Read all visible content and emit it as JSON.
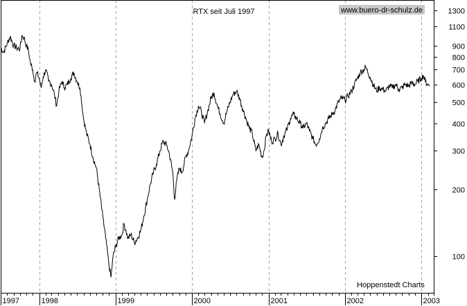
{
  "chart_data": {
    "type": "line",
    "title": "RTX seit Juli 1997",
    "watermark": "www.buero-dr-schulz.de",
    "source": "Hoppenstedt Charts",
    "y_scale": "log",
    "ylim": [
      68,
      1450
    ],
    "y_ticks": [
      100,
      200,
      300,
      400,
      500,
      600,
      700,
      800,
      900,
      1100,
      1300
    ],
    "y_tick_labels": [
      "100",
      "200",
      "300",
      "400",
      "500",
      "600",
      "700",
      "800",
      "900",
      "1100",
      "1300"
    ],
    "xlim": [
      "1997-07-01",
      "2003-03-01"
    ],
    "x_ticks": [
      "1997-07-01",
      "1998-01-01",
      "1999-01-01",
      "2000-01-01",
      "2001-01-01",
      "2002-01-01",
      "2003-01-01"
    ],
    "x_tick_labels": [
      "1997",
      "1998",
      "1999",
      "2000",
      "2001",
      "2002",
      "2003"
    ],
    "grid": "vertical-dashed",
    "series": [
      {
        "color": "#000000",
        "points": [
          [
            "1997-07-01",
            880
          ],
          [
            "1997-07-15",
            840
          ],
          [
            "1997-08-01",
            920
          ],
          [
            "1997-08-15",
            990
          ],
          [
            "1997-09-01",
            900
          ],
          [
            "1997-09-15",
            880
          ],
          [
            "1997-10-01",
            870
          ],
          [
            "1997-10-10",
            1000
          ],
          [
            "1997-10-20",
            980
          ],
          [
            "1997-11-01",
            900
          ],
          [
            "1997-11-10",
            860
          ],
          [
            "1997-11-20",
            750
          ],
          [
            "1997-12-01",
            700
          ],
          [
            "1997-12-10",
            620
          ],
          [
            "1997-12-20",
            680
          ],
          [
            "1998-01-01",
            640
          ],
          [
            "1998-01-10",
            580
          ],
          [
            "1998-01-20",
            650
          ],
          [
            "1998-02-01",
            700
          ],
          [
            "1998-02-15",
            620
          ],
          [
            "1998-03-01",
            600
          ],
          [
            "1998-03-15",
            540
          ],
          [
            "1998-03-25",
            480
          ],
          [
            "1998-04-05",
            560
          ],
          [
            "1998-04-20",
            620
          ],
          [
            "1998-05-01",
            580
          ],
          [
            "1998-05-15",
            600
          ],
          [
            "1998-06-01",
            640
          ],
          [
            "1998-06-15",
            680
          ],
          [
            "1998-07-01",
            620
          ],
          [
            "1998-07-15",
            580
          ],
          [
            "1998-08-01",
            420
          ],
          [
            "1998-08-15",
            360
          ],
          [
            "1998-09-01",
            320
          ],
          [
            "1998-09-15",
            280
          ],
          [
            "1998-10-01",
            250
          ],
          [
            "1998-10-15",
            200
          ],
          [
            "1998-11-01",
            150
          ],
          [
            "1998-11-15",
            120
          ],
          [
            "1998-12-01",
            90
          ],
          [
            "1998-12-10",
            80
          ],
          [
            "1998-12-20",
            100
          ],
          [
            "1999-01-01",
            110
          ],
          [
            "1999-01-15",
            120
          ],
          [
            "1999-02-01",
            125
          ],
          [
            "1999-02-10",
            140
          ],
          [
            "1999-02-20",
            130
          ],
          [
            "1999-03-01",
            120
          ],
          [
            "1999-03-15",
            125
          ],
          [
            "1999-04-01",
            115
          ],
          [
            "1999-04-15",
            120
          ],
          [
            "1999-05-01",
            130
          ],
          [
            "1999-05-15",
            150
          ],
          [
            "1999-06-01",
            180
          ],
          [
            "1999-06-15",
            210
          ],
          [
            "1999-07-01",
            240
          ],
          [
            "1999-07-15",
            260
          ],
          [
            "1999-08-01",
            300
          ],
          [
            "1999-08-15",
            330
          ],
          [
            "1999-09-01",
            320
          ],
          [
            "1999-09-15",
            290
          ],
          [
            "1999-10-01",
            240
          ],
          [
            "1999-10-10",
            180
          ],
          [
            "1999-10-20",
            220
          ],
          [
            "1999-11-01",
            250
          ],
          [
            "1999-11-15",
            240
          ],
          [
            "1999-12-01",
            280
          ],
          [
            "1999-12-15",
            300
          ],
          [
            "2000-01-01",
            350
          ],
          [
            "2000-01-15",
            420
          ],
          [
            "2000-02-01",
            480
          ],
          [
            "2000-02-15",
            450
          ],
          [
            "2000-03-01",
            400
          ],
          [
            "2000-03-15",
            450
          ],
          [
            "2000-04-01",
            520
          ],
          [
            "2000-04-15",
            550
          ],
          [
            "2000-05-01",
            480
          ],
          [
            "2000-05-15",
            440
          ],
          [
            "2000-06-01",
            400
          ],
          [
            "2000-06-15",
            450
          ],
          [
            "2000-07-01",
            500
          ],
          [
            "2000-07-15",
            540
          ],
          [
            "2000-08-01",
            560
          ],
          [
            "2000-08-15",
            520
          ],
          [
            "2000-09-01",
            460
          ],
          [
            "2000-09-15",
            420
          ],
          [
            "2000-10-01",
            380
          ],
          [
            "2000-10-15",
            360
          ],
          [
            "2000-11-01",
            300
          ],
          [
            "2000-11-15",
            320
          ],
          [
            "2000-12-01",
            280
          ],
          [
            "2000-12-10",
            300
          ],
          [
            "2000-12-20",
            350
          ],
          [
            "2001-01-01",
            370
          ],
          [
            "2001-01-15",
            330
          ],
          [
            "2001-02-01",
            340
          ],
          [
            "2001-02-15",
            360
          ],
          [
            "2001-03-01",
            320
          ],
          [
            "2001-03-15",
            350
          ],
          [
            "2001-04-01",
            380
          ],
          [
            "2001-04-15",
            420
          ],
          [
            "2001-05-01",
            440
          ],
          [
            "2001-05-15",
            420
          ],
          [
            "2001-06-01",
            400
          ],
          [
            "2001-06-15",
            380
          ],
          [
            "2001-07-01",
            400
          ],
          [
            "2001-07-15",
            370
          ],
          [
            "2001-08-01",
            340
          ],
          [
            "2001-08-15",
            320
          ],
          [
            "2001-09-01",
            340
          ],
          [
            "2001-09-15",
            380
          ],
          [
            "2001-10-01",
            400
          ],
          [
            "2001-10-15",
            420
          ],
          [
            "2001-11-01",
            440
          ],
          [
            "2001-11-15",
            460
          ],
          [
            "2001-12-01",
            500
          ],
          [
            "2001-12-15",
            520
          ],
          [
            "2002-01-01",
            510
          ],
          [
            "2002-01-15",
            530
          ],
          [
            "2002-02-01",
            560
          ],
          [
            "2002-02-15",
            600
          ],
          [
            "2002-03-01",
            640
          ],
          [
            "2002-03-15",
            680
          ],
          [
            "2002-04-01",
            700
          ],
          [
            "2002-04-10",
            720
          ],
          [
            "2002-04-20",
            680
          ],
          [
            "2002-05-01",
            650
          ],
          [
            "2002-05-15",
            600
          ],
          [
            "2002-06-01",
            560
          ],
          [
            "2002-06-15",
            580
          ],
          [
            "2002-07-01",
            570
          ],
          [
            "2002-07-15",
            560
          ],
          [
            "2002-08-01",
            590
          ],
          [
            "2002-08-15",
            580
          ],
          [
            "2002-09-01",
            600
          ],
          [
            "2002-09-15",
            570
          ],
          [
            "2002-10-01",
            580
          ],
          [
            "2002-10-15",
            600
          ],
          [
            "2002-11-01",
            590
          ],
          [
            "2002-11-15",
            610
          ],
          [
            "2002-12-01",
            600
          ],
          [
            "2002-12-15",
            620
          ],
          [
            "2003-01-01",
            640
          ],
          [
            "2003-01-10",
            660
          ],
          [
            "2003-01-20",
            620
          ],
          [
            "2003-02-01",
            600
          ],
          [
            "2003-02-10",
            590
          ]
        ]
      }
    ]
  }
}
